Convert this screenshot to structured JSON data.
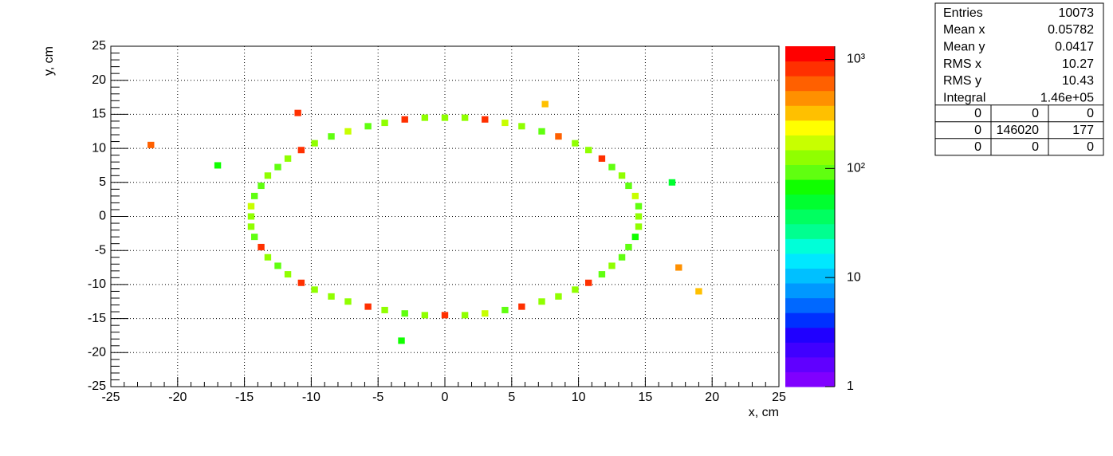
{
  "chart_data": {
    "type": "heatmap",
    "xlabel": "x, cm",
    "ylabel": "y, cm",
    "xlim": [
      -25,
      25
    ],
    "ylim": [
      -25,
      25
    ],
    "xticks": [
      -25,
      -20,
      -15,
      -10,
      -5,
      0,
      5,
      10,
      15,
      20,
      25
    ],
    "yticks": [
      -25,
      -20,
      -15,
      -10,
      -5,
      0,
      5,
      10,
      15,
      20,
      25
    ],
    "grid": true,
    "zlim": [
      1,
      1320
    ],
    "zscale": "log",
    "zticks": [
      1,
      10,
      {
        "value": 100,
        "label": "10²"
      },
      {
        "value": 1000,
        "label": "10³"
      }
    ],
    "palette": [
      "#8000ff",
      "#6000ff",
      "#4000ff",
      "#2000ff",
      "#0030ff",
      "#0068ff",
      "#0098ff",
      "#00c0ff",
      "#00e8ff",
      "#00ffd8",
      "#00ff90",
      "#00ff60",
      "#00ff30",
      "#10ff00",
      "#60ff10",
      "#90ff00",
      "#c8ff00",
      "#ffff00",
      "#ffc000",
      "#ff9000",
      "#ff6000",
      "#ff3000",
      "#ff0000"
    ],
    "x": [
      14.5,
      14.5,
      14.25,
      13.75,
      13.25,
      12.5,
      11.75,
      10.75,
      9.75,
      8.5,
      7.25,
      5.75,
      4.5,
      3,
      1.5,
      0,
      -1.5,
      -3,
      -4.5,
      -5.75,
      -7.25,
      -8.5,
      -9.75,
      -10.75,
      -11.75,
      -12.5,
      -13.25,
      -13.75,
      -14.25,
      -14.5,
      -14.5,
      -14.5,
      -14.25,
      -13.75,
      -13.25,
      -12.5,
      -11.75,
      -10.75,
      -9.75,
      -8.5,
      -7.25,
      -5.75,
      -4.5,
      -3,
      -1.5,
      0,
      1.5,
      3,
      4.5,
      5.75,
      7.25,
      8.5,
      9.75,
      10.75,
      11.75,
      12.5,
      13.25,
      13.75,
      14.25,
      14.5,
      -22,
      -17,
      7.5,
      17,
      17.5,
      19,
      -3.25,
      -11
    ],
    "y": [
      0,
      1.5,
      3,
      4.5,
      6,
      7.25,
      8.5,
      9.75,
      10.75,
      11.75,
      12.5,
      13.25,
      13.75,
      14.25,
      14.5,
      14.5,
      14.5,
      14.25,
      13.75,
      13.25,
      12.5,
      11.75,
      10.75,
      9.75,
      8.5,
      7.25,
      6,
      4.5,
      3,
      1.5,
      0,
      -1.5,
      -3,
      -4.5,
      -6,
      -7.25,
      -8.5,
      -9.75,
      -10.75,
      -11.75,
      -12.5,
      -13.25,
      -13.75,
      -14.25,
      -14.5,
      -14.5,
      -14.5,
      -14.25,
      -13.75,
      -13.25,
      -12.5,
      -11.75,
      -10.75,
      -9.75,
      -8.5,
      -7.25,
      -6,
      -4.5,
      -3,
      -1.5,
      10.5,
      7.5,
      16.5,
      5,
      -7.5,
      -11,
      -18.25,
      15.2
    ],
    "values": [
      120,
      90,
      150,
      100,
      130,
      80,
      900,
      110,
      140,
      700,
      95,
      120,
      160,
      850,
      110,
      130,
      140,
      900,
      120,
      100,
      150,
      90,
      130,
      800,
      110,
      90,
      120,
      80,
      100,
      150,
      110,
      130,
      90,
      850,
      120,
      100,
      110,
      900,
      140,
      120,
      130,
      800,
      110,
      95,
      140,
      950,
      120,
      160,
      100,
      900,
      130,
      110,
      140,
      850,
      90,
      120,
      100,
      80,
      70,
      110,
      700,
      60,
      350,
      50,
      450,
      300,
      60,
      800
    ],
    "stats": {
      "rows": [
        [
          "Entries",
          "10073"
        ],
        [
          "Mean x",
          "0.05782"
        ],
        [
          "Mean y",
          "0.0417"
        ],
        [
          "RMS x",
          "10.27"
        ],
        [
          "RMS y",
          "10.43"
        ],
        [
          "Integral",
          "1.46e+05"
        ]
      ],
      "table": [
        [
          "0",
          "0",
          "0"
        ],
        [
          "0",
          "146020",
          "177"
        ],
        [
          "0",
          "0",
          "0"
        ]
      ]
    }
  }
}
